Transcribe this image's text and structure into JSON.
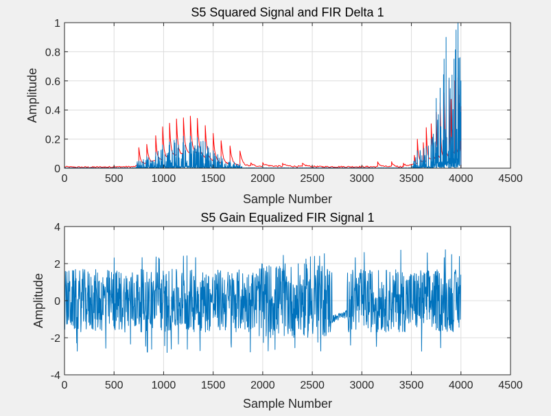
{
  "chart_data": [
    {
      "type": "line",
      "title": "S5 Squared Signal and FIR Delta 1",
      "xlabel": "Sample Number",
      "ylabel": "Amplitude",
      "xlim": [
        0,
        4500
      ],
      "ylim": [
        0,
        1
      ],
      "xticks": [
        0,
        500,
        1000,
        1500,
        2000,
        2500,
        3000,
        3500,
        4000,
        4500
      ],
      "yticks": [
        0,
        0.2,
        0.4,
        0.6,
        0.8,
        1
      ],
      "ytick_labels": [
        "0",
        "0.2",
        "0.4",
        "0.6",
        "0.8",
        "1"
      ],
      "grid": true,
      "series": [
        {
          "color": "#ff0000",
          "peaks": [
            [
              0,
              0.01
            ],
            [
              500,
              0.015
            ],
            [
              560,
              0.01
            ],
            [
              750,
              0.14
            ],
            [
              830,
              0.16
            ],
            [
              920,
              0.22
            ],
            [
              990,
              0.28
            ],
            [
              1060,
              0.31
            ],
            [
              1130,
              0.34
            ],
            [
              1200,
              0.35
            ],
            [
              1270,
              0.36
            ],
            [
              1340,
              0.34
            ],
            [
              1420,
              0.29
            ],
            [
              1500,
              0.24
            ],
            [
              1580,
              0.19
            ],
            [
              1670,
              0.15
            ],
            [
              1770,
              0.12
            ],
            [
              1880,
              0.035
            ],
            [
              2000,
              0.035
            ],
            [
              2200,
              0.03
            ],
            [
              2400,
              0.03
            ],
            [
              2600,
              0.01
            ],
            [
              3050,
              0.01
            ],
            [
              3160,
              0.04
            ],
            [
              3300,
              0.04
            ],
            [
              3420,
              0.03
            ],
            [
              3530,
              0.09
            ],
            [
              3560,
              0.2
            ],
            [
              3620,
              0.18
            ],
            [
              3650,
              0.28
            ],
            [
              3700,
              0.31
            ],
            [
              3750,
              0.39
            ],
            [
              3790,
              0.45
            ],
            [
              3830,
              0.52
            ],
            [
              3880,
              0.6
            ],
            [
              3900,
              0.47
            ],
            [
              3940,
              0.6
            ],
            [
              3970,
              0.62
            ],
            [
              3990,
              0.5
            ],
            [
              4000,
              0.42
            ]
          ],
          "base": [
            [
              0,
              0.005
            ],
            [
              700,
              0.01
            ],
            [
              800,
              0.03
            ],
            [
              1000,
              0.06
            ],
            [
              1200,
              0.1
            ],
            [
              1300,
              0.11
            ],
            [
              1500,
              0.05
            ],
            [
              1700,
              0.02
            ],
            [
              1900,
              0.015
            ],
            [
              2600,
              0.01
            ],
            [
              3400,
              0.01
            ],
            [
              3550,
              0.03
            ],
            [
              3700,
              0.06
            ],
            [
              3900,
              0.08
            ],
            [
              4000,
              0.12
            ]
          ]
        },
        {
          "color": "#0072bd",
          "peaks": [
            [
              500,
              0.01
            ],
            [
              750,
              0.05
            ],
            [
              830,
              0.08
            ],
            [
              920,
              0.11
            ],
            [
              990,
              0.16
            ],
            [
              1060,
              0.18
            ],
            [
              1130,
              0.2
            ],
            [
              1200,
              0.22
            ],
            [
              1270,
              0.22
            ],
            [
              1340,
              0.21
            ],
            [
              1420,
              0.18
            ],
            [
              1500,
              0.12
            ],
            [
              1580,
              0.08
            ],
            [
              1670,
              0.05
            ],
            [
              1770,
              0.03
            ],
            [
              3530,
              0.05
            ],
            [
              3560,
              0.12
            ],
            [
              3650,
              0.15
            ],
            [
              3700,
              0.2
            ],
            [
              3750,
              0.48
            ],
            [
              3790,
              0.55
            ],
            [
              3830,
              0.75
            ],
            [
              3850,
              0.9
            ],
            [
              3880,
              0.62
            ],
            [
              3910,
              0.64
            ],
            [
              3930,
              0.75
            ],
            [
              3950,
              0.95
            ],
            [
              3970,
              1.0
            ],
            [
              3990,
              0.76
            ],
            [
              4000,
              0.6
            ]
          ]
        }
      ]
    },
    {
      "type": "line",
      "title": "S5 Gain Equalized FIR Signal 1",
      "xlabel": "Sample Number",
      "ylabel": "Amplitude",
      "xlim": [
        0,
        4500
      ],
      "ylim": [
        -4,
        4
      ],
      "xticks": [
        0,
        500,
        1000,
        1500,
        2000,
        2500,
        3000,
        3500,
        4000,
        4500
      ],
      "yticks": [
        -4,
        -2,
        0,
        2,
        4
      ],
      "ytick_labels": [
        "-4",
        "-2",
        "0",
        "2",
        "4"
      ],
      "grid": true,
      "series": [
        {
          "color": "#0072bd",
          "x_range": [
            0,
            4000
          ],
          "min": -2.8,
          "max": 3.1,
          "flat_segment": [
            2700,
            2850,
            -1.0
          ]
        }
      ]
    }
  ]
}
